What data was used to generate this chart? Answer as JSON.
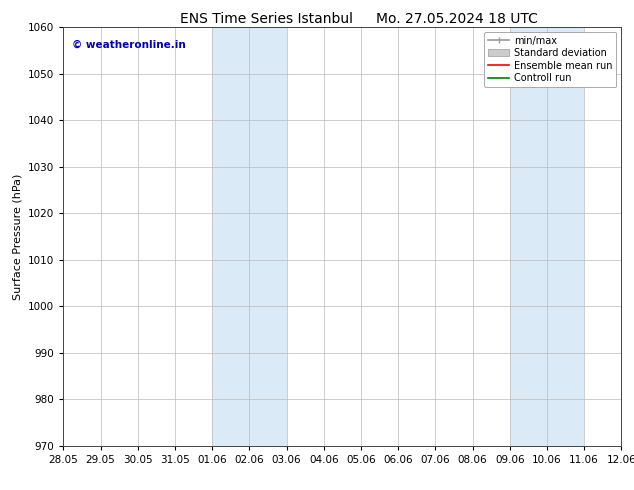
{
  "title": "ENS Time Series Istanbul",
  "title2": "Mo. 27.05.2024 18 UTC",
  "ylabel": "Surface Pressure (hPa)",
  "ylim": [
    970,
    1060
  ],
  "yticks": [
    970,
    980,
    990,
    1000,
    1010,
    1020,
    1030,
    1040,
    1050,
    1060
  ],
  "xtick_labels": [
    "28.05",
    "29.05",
    "30.05",
    "31.05",
    "01.06",
    "02.06",
    "03.06",
    "04.06",
    "05.06",
    "06.06",
    "07.06",
    "08.06",
    "09.06",
    "10.06",
    "11.06",
    "12.06"
  ],
  "xtick_positions": [
    0,
    1,
    2,
    3,
    4,
    5,
    6,
    7,
    8,
    9,
    10,
    11,
    12,
    13,
    14,
    15
  ],
  "shaded_regions": [
    {
      "x_start": 4,
      "x_end": 6,
      "color": "#daeaf7"
    },
    {
      "x_start": 12,
      "x_end": 14,
      "color": "#daeaf7"
    }
  ],
  "watermark_text": "© weatheronline.in",
  "watermark_color": "#0000bb",
  "background_color": "#ffffff",
  "grid_color": "#bbbbbb",
  "legend_items": [
    {
      "label": "min/max",
      "color": "#999999",
      "lw": 1.2,
      "ls": "-",
      "type": "errbar"
    },
    {
      "label": "Standard deviation",
      "color": "#cccccc",
      "lw": 6,
      "ls": "-",
      "type": "patch"
    },
    {
      "label": "Ensemble mean run",
      "color": "#ff0000",
      "lw": 1.2,
      "ls": "-",
      "type": "line"
    },
    {
      "label": "Controll run",
      "color": "#008000",
      "lw": 1.2,
      "ls": "-",
      "type": "line"
    }
  ],
  "title_fontsize": 10,
  "axis_label_fontsize": 8,
  "tick_fontsize": 7.5,
  "watermark_fontsize": 7.5,
  "legend_fontsize": 7
}
